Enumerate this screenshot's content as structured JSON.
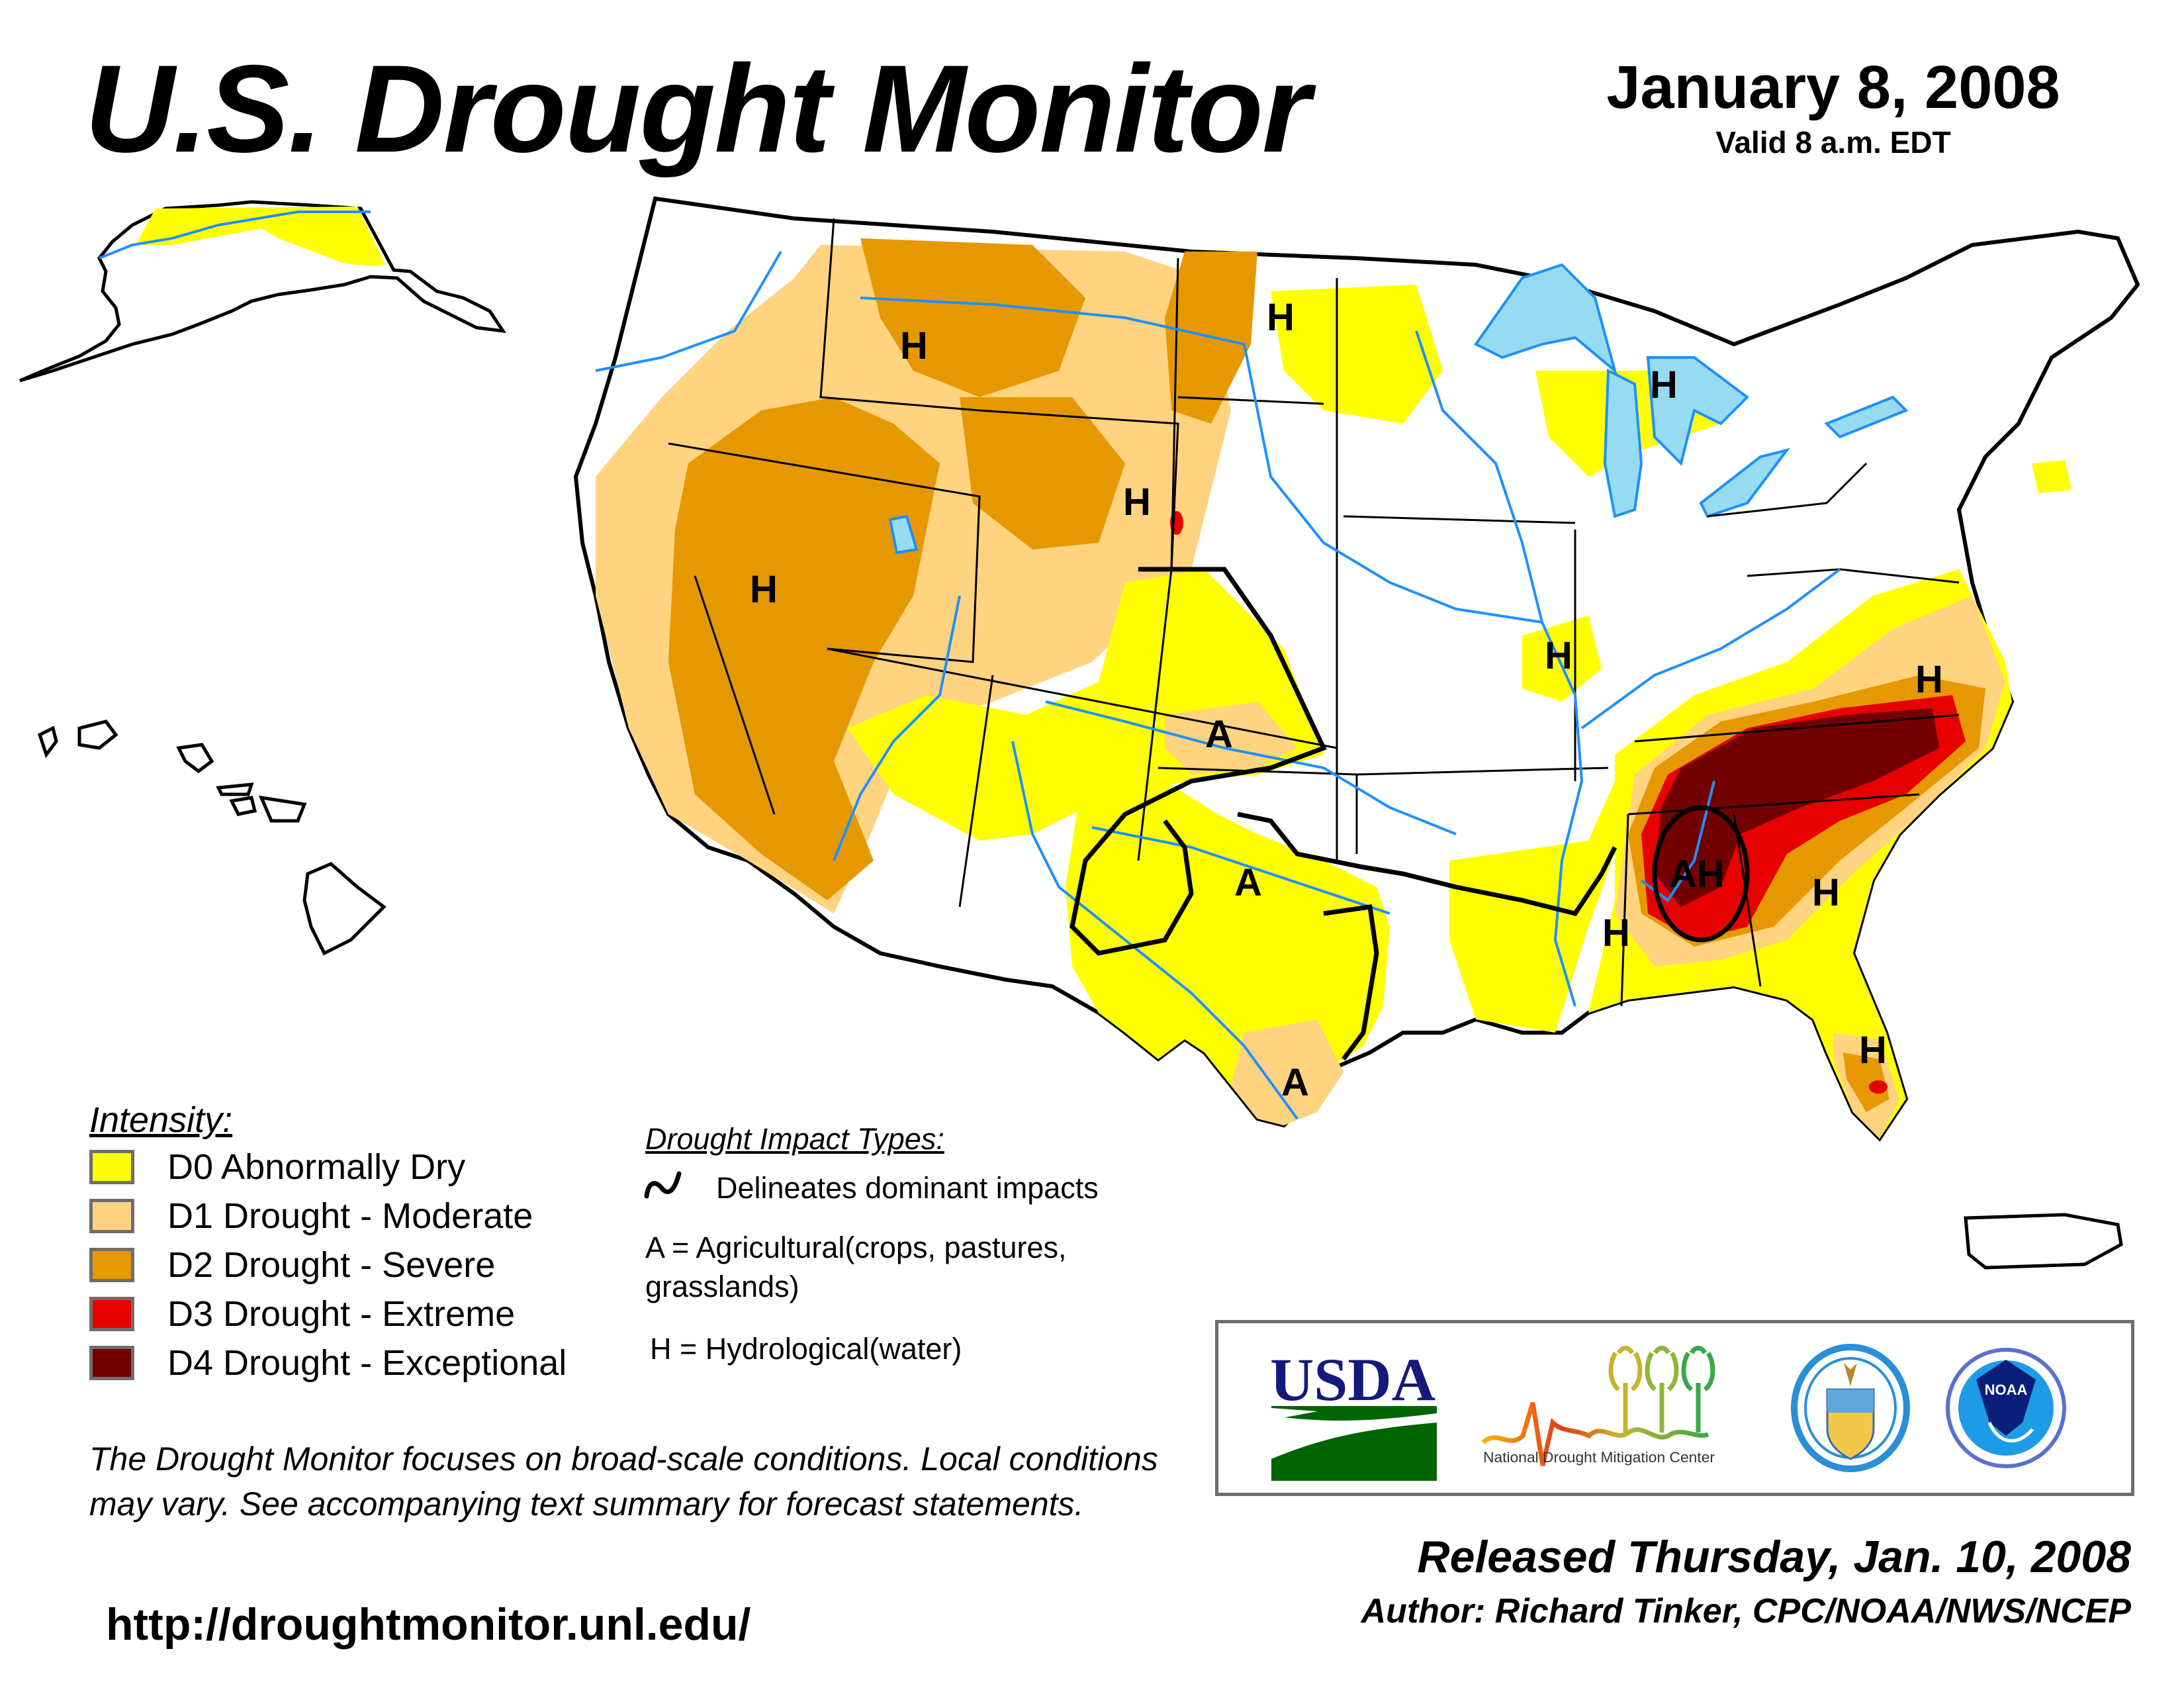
{
  "header": {
    "title": "U.S. Drought Monitor",
    "date": "January 8, 2008",
    "valid": "Valid 8 a.m. EDT"
  },
  "colors": {
    "d0": "#FFFF00",
    "d1": "#FFD37F",
    "d2": "#E69800",
    "d3": "#E60000",
    "d4": "#730000",
    "water": "#97DBF2",
    "rivers": "#1E90FF",
    "counties": "#A8A8A8"
  },
  "legend": {
    "title": "Intensity:",
    "items": [
      {
        "code": "D0",
        "label": "D0 Abnormally Dry",
        "color": "#FFFF00"
      },
      {
        "code": "D1",
        "label": "D1 Drought - Moderate",
        "color": "#FFD37F"
      },
      {
        "code": "D2",
        "label": "D2 Drought - Severe",
        "color": "#E69800"
      },
      {
        "code": "D3",
        "label": "D3 Drought - Extreme",
        "color": "#E60000"
      },
      {
        "code": "D4",
        "label": "D4 Drought - Exceptional",
        "color": "#730000"
      }
    ]
  },
  "impacts": {
    "title": "Drought Impact Types:",
    "delineates": "Delineates dominant impacts",
    "agricultural": "A = Agricultural(crops, pastures, grasslands)",
    "hydrological": "H = Hydrological(water)"
  },
  "map_labels": [
    {
      "text": "H",
      "region": "Idaho"
    },
    {
      "text": "H",
      "region": "North Dakota"
    },
    {
      "text": "H",
      "region": "Michigan"
    },
    {
      "text": "H",
      "region": "Nevada"
    },
    {
      "text": "H",
      "region": "Wyoming-South Dakota"
    },
    {
      "text": "H",
      "region": "Illinois"
    },
    {
      "text": "H",
      "region": "Virginia"
    },
    {
      "text": "H",
      "region": "Georgia"
    },
    {
      "text": "H",
      "region": "Mississippi"
    },
    {
      "text": "H",
      "region": "Florida"
    },
    {
      "text": "A",
      "region": "Kansas-Nebraska"
    },
    {
      "text": "A",
      "region": "Texas Panhandle"
    },
    {
      "text": "A",
      "region": "South Texas"
    },
    {
      "text": "AH",
      "region": "Alabama"
    }
  ],
  "logos": {
    "usda": "USDA",
    "ndmc": "National Drought Mitigation Center",
    "noaa": "NOAA"
  },
  "footer": {
    "disclaimer": "The Drought Monitor focuses on broad-scale conditions. Local conditions may vary. See accompanying text summary for forecast statements.",
    "url": "http://droughtmonitor.unl.edu/",
    "released": "Released Thursday, Jan. 10, 2008",
    "author": "Author: Richard Tinker, CPC/NOAA/NWS/NCEP"
  }
}
